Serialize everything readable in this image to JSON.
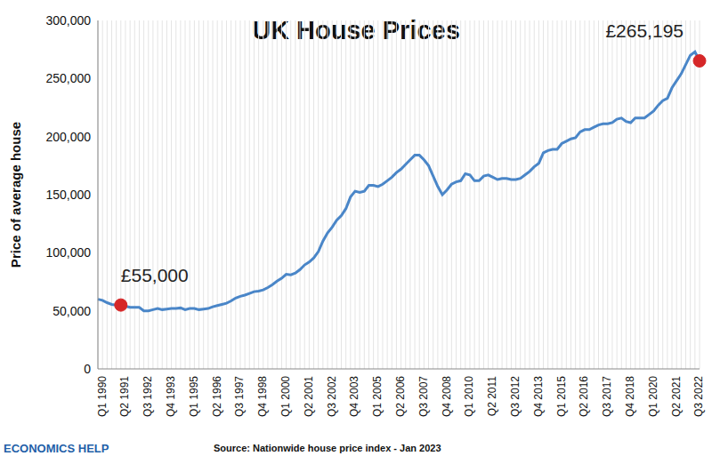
{
  "chart_data": {
    "type": "line",
    "title": "UK House Prices",
    "y_label": "Price of average house",
    "source": "Source: Nationwide house price index - Jan 2023",
    "logo": "ECONOMICS HELP",
    "categories": [
      "Q1 1990",
      null,
      null,
      null,
      null,
      "Q2 1991",
      null,
      null,
      null,
      null,
      "Q3 1992",
      null,
      null,
      null,
      null,
      "Q4 1993",
      null,
      null,
      null,
      null,
      "Q1 1995",
      null,
      null,
      null,
      null,
      "Q2 1996",
      null,
      null,
      null,
      null,
      "Q3 1997",
      null,
      null,
      null,
      null,
      "Q4 1998",
      null,
      null,
      null,
      null,
      "Q1 2000",
      null,
      null,
      null,
      null,
      "Q2 2001",
      null,
      null,
      null,
      null,
      "Q3 2002",
      null,
      null,
      null,
      null,
      "Q4 2003",
      null,
      null,
      null,
      null,
      "Q1 2005",
      null,
      null,
      null,
      null,
      "Q2 2006",
      null,
      null,
      null,
      null,
      "Q3 2007",
      null,
      null,
      null,
      null,
      "Q4 2008",
      null,
      null,
      null,
      null,
      "Q1 2010",
      null,
      null,
      null,
      null,
      "Q2 2011",
      null,
      null,
      null,
      null,
      "Q3 2012",
      null,
      null,
      null,
      null,
      "Q4 2013",
      null,
      null,
      null,
      null,
      "Q1 2015",
      null,
      null,
      null,
      null,
      "Q2 2016",
      null,
      null,
      null,
      null,
      "Q3 2017",
      null,
      null,
      null,
      null,
      "Q4 2018",
      null,
      null,
      null,
      null,
      "Q1 2020",
      null,
      null,
      null,
      null,
      "Q2 2021",
      null,
      null,
      null,
      null,
      "Q3 2022",
      null
    ],
    "values": [
      60000,
      59000,
      57000,
      55500,
      55000,
      55000,
      54000,
      53000,
      53000,
      53000,
      50000,
      50000,
      51000,
      52000,
      51000,
      51500,
      52000,
      52000,
      52500,
      51000,
      52000,
      52000,
      51000,
      51500,
      52000,
      53500,
      54500,
      55500,
      56500,
      58500,
      61000,
      62500,
      63500,
      65000,
      66500,
      67000,
      68000,
      70000,
      72500,
      75500,
      78000,
      81500,
      81000,
      82500,
      85500,
      89500,
      92000,
      95500,
      101000,
      110000,
      117000,
      122000,
      128000,
      132000,
      138000,
      148000,
      153000,
      152000,
      153000,
      158000,
      158000,
      157000,
      159000,
      162000,
      165000,
      169000,
      172000,
      176000,
      180000,
      184000,
      184000,
      180000,
      175000,
      166000,
      157000,
      150000,
      154000,
      159000,
      161000,
      162000,
      168000,
      167000,
      162000,
      162000,
      166000,
      167000,
      165000,
      163000,
      164000,
      164000,
      163000,
      163000,
      164000,
      167000,
      170000,
      174000,
      177000,
      186000,
      188000,
      189000,
      189000,
      194000,
      196000,
      198000,
      199000,
      204000,
      206000,
      206000,
      208000,
      210000,
      211000,
      211000,
      212000,
      215000,
      216000,
      213000,
      212000,
      216000,
      216000,
      216000,
      219000,
      222000,
      227000,
      231000,
      233000,
      242000,
      248000,
      254000,
      262000,
      270000,
      273000,
      265195
    ],
    "color": "#4a86c8",
    "ylim": [
      0,
      300000
    ],
    "yticks": [
      {
        "value": 0,
        "label": "0"
      },
      {
        "value": 50000,
        "label": "50,000"
      },
      {
        "value": 100000,
        "label": "100,000"
      },
      {
        "value": 150000,
        "label": "150,000"
      },
      {
        "value": 200000,
        "label": "200,000"
      },
      {
        "value": 250000,
        "label": "250,000"
      },
      {
        "value": 300000,
        "label": "300,000"
      }
    ],
    "grid": true,
    "annotations": [
      {
        "text": "£55,000",
        "x": 5,
        "color": "#d62728"
      },
      {
        "text": "£265,195",
        "x": 131,
        "color": "#d62728"
      }
    ]
  }
}
